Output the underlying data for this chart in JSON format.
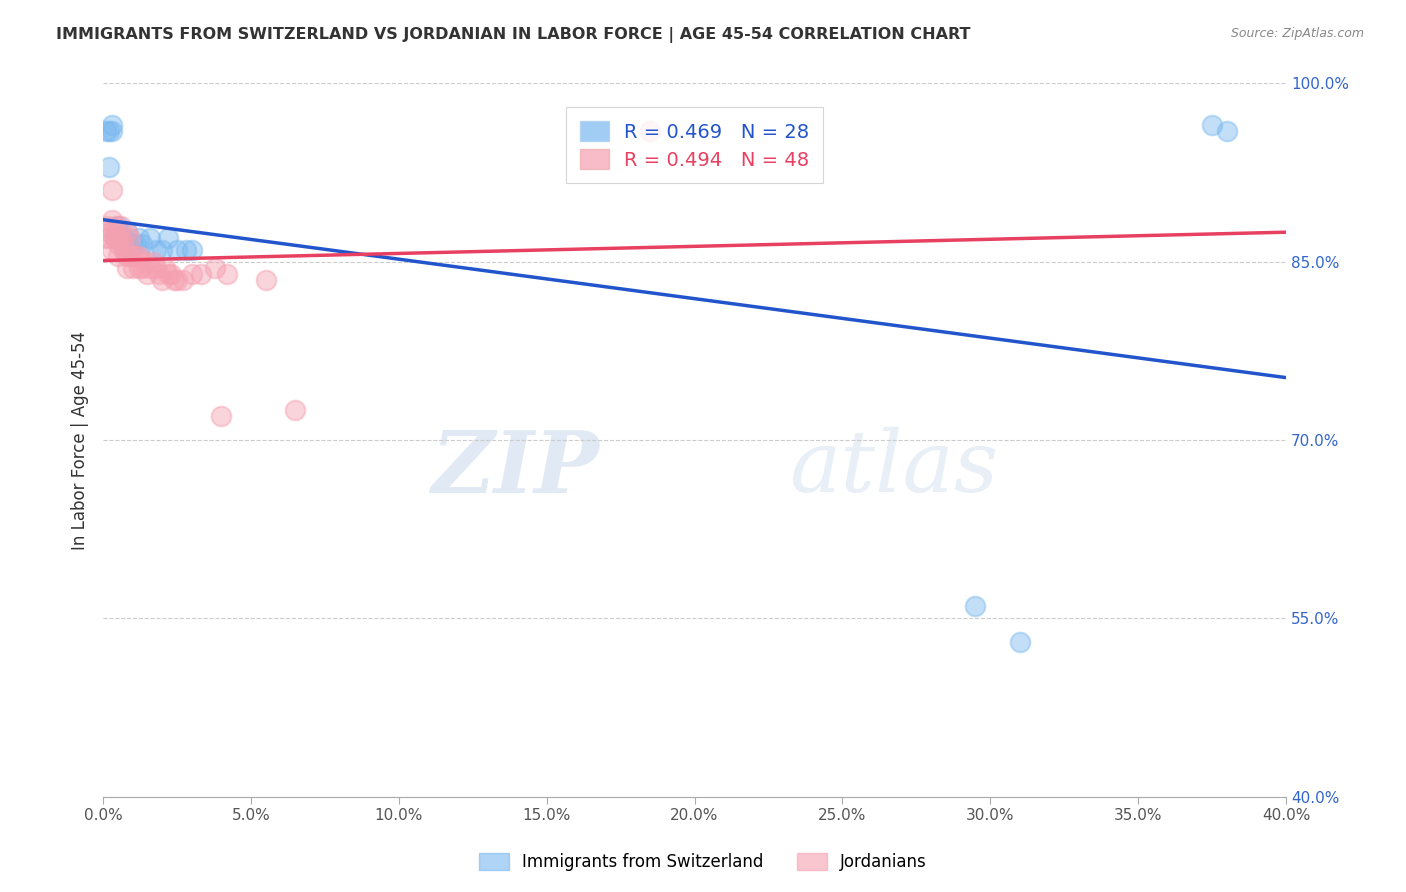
{
  "title": "IMMIGRANTS FROM SWITZERLAND VS JORDANIAN IN LABOR FORCE | AGE 45-54 CORRELATION CHART",
  "source": "Source: ZipAtlas.com",
  "ylabel": "In Labor Force | Age 45-54",
  "legend_label_blue": "Immigrants from Switzerland",
  "legend_label_pink": "Jordanians",
  "R_blue": 0.469,
  "N_blue": 28,
  "R_pink": 0.494,
  "N_pink": 48,
  "xlim": [
    0.0,
    0.4
  ],
  "ylim": [
    0.4,
    1.0
  ],
  "x_ticks": [
    0.0,
    0.05,
    0.1,
    0.15,
    0.2,
    0.25,
    0.3,
    0.35,
    0.4
  ],
  "y_ticks": [
    0.4,
    0.55,
    0.7,
    0.85,
    1.0
  ],
  "color_blue": "#7ab8f0",
  "color_pink": "#f5a0b0",
  "line_color_blue": "#2255cc",
  "line_color_pink": "#e84060",
  "swiss_x": [
    0.001,
    0.002,
    0.002,
    0.003,
    0.003,
    0.004,
    0.005,
    0.005,
    0.006,
    0.007,
    0.007,
    0.008,
    0.009,
    0.01,
    0.011,
    0.012,
    0.013,
    0.016,
    0.018,
    0.02,
    0.022,
    0.025,
    0.028,
    0.03,
    0.295,
    0.31,
    0.375,
    0.38
  ],
  "swiss_y": [
    0.96,
    0.93,
    0.96,
    0.96,
    0.965,
    0.87,
    0.87,
    0.88,
    0.87,
    0.86,
    0.87,
    0.875,
    0.86,
    0.865,
    0.865,
    0.87,
    0.865,
    0.87,
    0.86,
    0.86,
    0.87,
    0.86,
    0.86,
    0.86,
    0.56,
    0.53,
    0.965,
    0.96
  ],
  "jordan_x": [
    0.001,
    0.001,
    0.002,
    0.002,
    0.003,
    0.003,
    0.003,
    0.004,
    0.004,
    0.005,
    0.005,
    0.005,
    0.006,
    0.006,
    0.007,
    0.007,
    0.008,
    0.008,
    0.008,
    0.009,
    0.009,
    0.01,
    0.01,
    0.011,
    0.012,
    0.012,
    0.013,
    0.014,
    0.015,
    0.016,
    0.017,
    0.018,
    0.019,
    0.02,
    0.021,
    0.022,
    0.023,
    0.024,
    0.025,
    0.027,
    0.03,
    0.033,
    0.038,
    0.04,
    0.042,
    0.055,
    0.065,
    0.185
  ],
  "jordan_y": [
    0.87,
    0.88,
    0.87,
    0.875,
    0.91,
    0.885,
    0.86,
    0.87,
    0.88,
    0.87,
    0.865,
    0.855,
    0.88,
    0.87,
    0.865,
    0.86,
    0.875,
    0.855,
    0.845,
    0.87,
    0.855,
    0.855,
    0.845,
    0.855,
    0.855,
    0.845,
    0.845,
    0.85,
    0.84,
    0.845,
    0.85,
    0.845,
    0.84,
    0.835,
    0.845,
    0.84,
    0.84,
    0.835,
    0.835,
    0.835,
    0.84,
    0.84,
    0.845,
    0.72,
    0.84,
    0.835,
    0.725,
    0.96
  ]
}
